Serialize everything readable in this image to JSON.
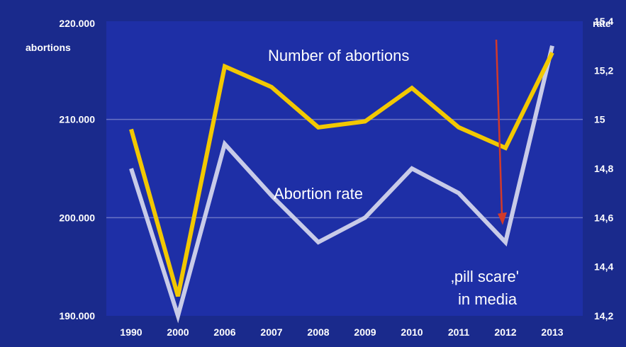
{
  "chart_data": {
    "type": "line",
    "categories": [
      "1990",
      "2000",
      "2006",
      "2007",
      "2008",
      "2009",
      "2010",
      "2011",
      "2012",
      "2013"
    ],
    "series": [
      {
        "name": "Number of abortions",
        "axis": "left",
        "color": "#f2c800",
        "values": [
          209000,
          192000,
          215400,
          213300,
          209200,
          209800,
          213200,
          209200,
          207100,
          216800
        ]
      },
      {
        "name": "Abortion rate",
        "axis": "right",
        "color": "#c8cbe8",
        "values": [
          14.8,
          14.2,
          14.9,
          14.69,
          14.5,
          14.6,
          14.8,
          14.7,
          14.5,
          15.3
        ]
      }
    ],
    "left_axis": {
      "title": "abortions",
      "top_label": "220.000",
      "range": [
        190000,
        220000
      ],
      "tick_values": [
        190000,
        200000,
        210000,
        220000
      ],
      "tick_labels": [
        "190.000",
        "200.000",
        "210.000",
        "220.000"
      ]
    },
    "right_axis": {
      "title": "rate",
      "range": [
        14.2,
        15.4
      ],
      "tick_values": [
        14.2,
        14.4,
        14.6,
        14.8,
        15.0,
        15.2,
        15.4
      ],
      "tick_labels": [
        "14,2",
        "14,4",
        "14,6",
        "14,8",
        "15",
        "15,2",
        "15,4"
      ]
    },
    "gridlines": [
      200000,
      210000
    ],
    "annotation": {
      "line1": "‚pill scare'",
      "line2": "in media",
      "arrow_color": "#d23a2a",
      "arrow_from_category": "2012",
      "arrow_target_value": 14.57
    },
    "colors": {
      "background": "#1a2a8c",
      "plot_background": "#1e2fa6",
      "gridline": "#6a74c4"
    }
  }
}
